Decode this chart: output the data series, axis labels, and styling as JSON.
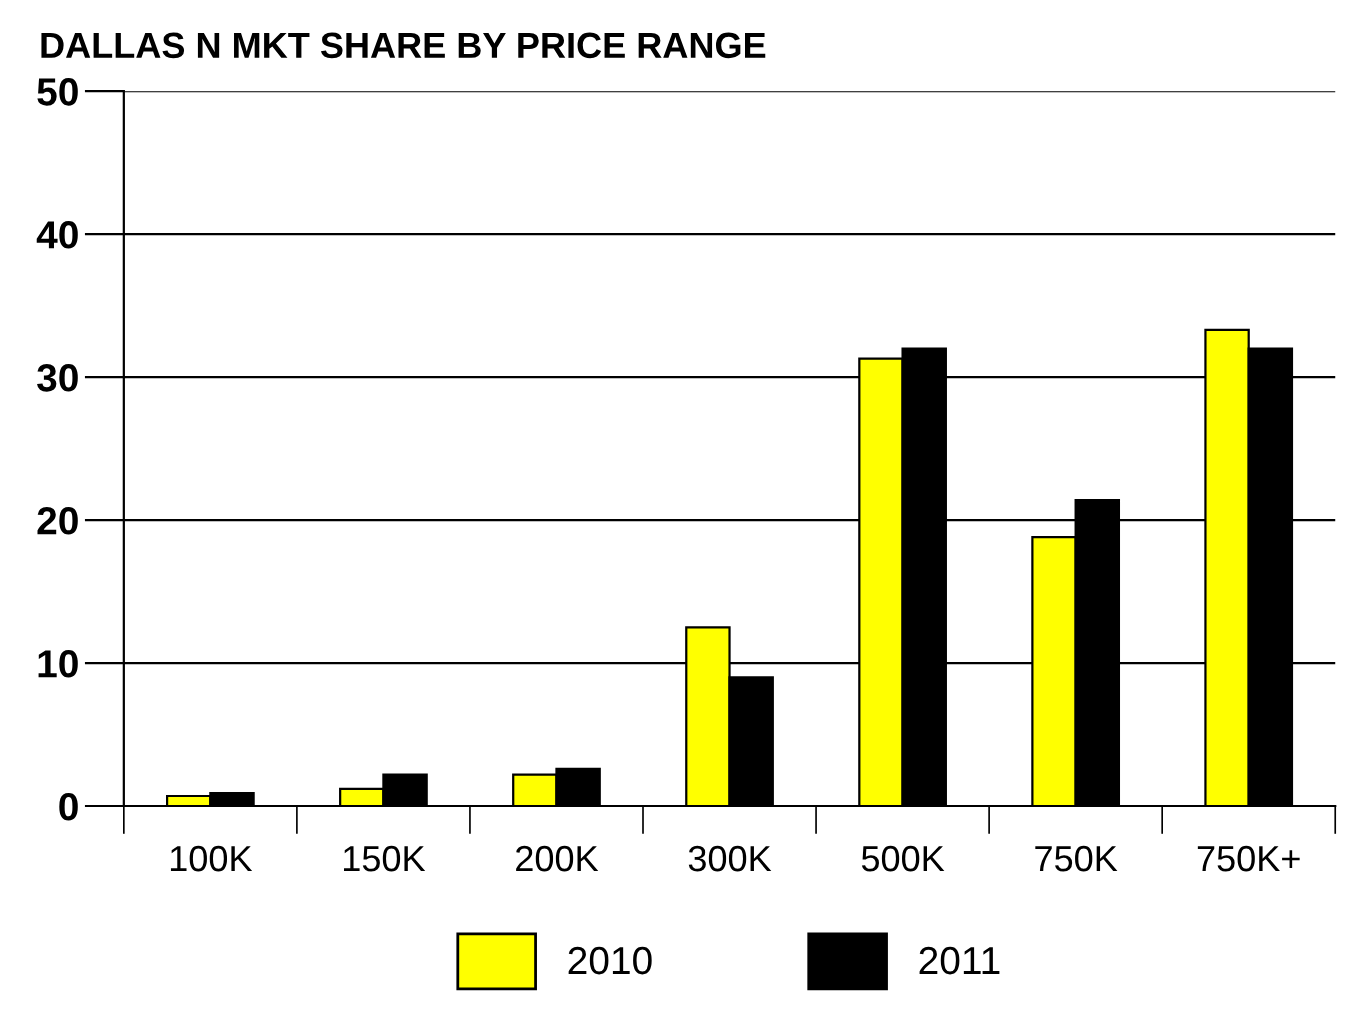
{
  "chart_data": {
    "type": "bar",
    "title": "DALLAS N MKT SHARE BY PRICE RANGE",
    "categories": [
      "100K",
      "150K",
      "200K",
      "300K",
      "500K",
      "750K",
      "750K+"
    ],
    "series": [
      {
        "name": "2010",
        "color": "#ffff00",
        "values": [
          0.7,
          1.2,
          2.2,
          12.5,
          31.3,
          18.8,
          33.3
        ]
      },
      {
        "name": "2011",
        "color": "#000000",
        "values": [
          0.9,
          2.2,
          2.6,
          9.0,
          32.0,
          21.4,
          32.0
        ]
      }
    ],
    "ylim": [
      0,
      50
    ],
    "yticks": [
      0,
      10,
      20,
      30,
      40,
      50
    ],
    "grid": "y",
    "legend": "bottom"
  }
}
